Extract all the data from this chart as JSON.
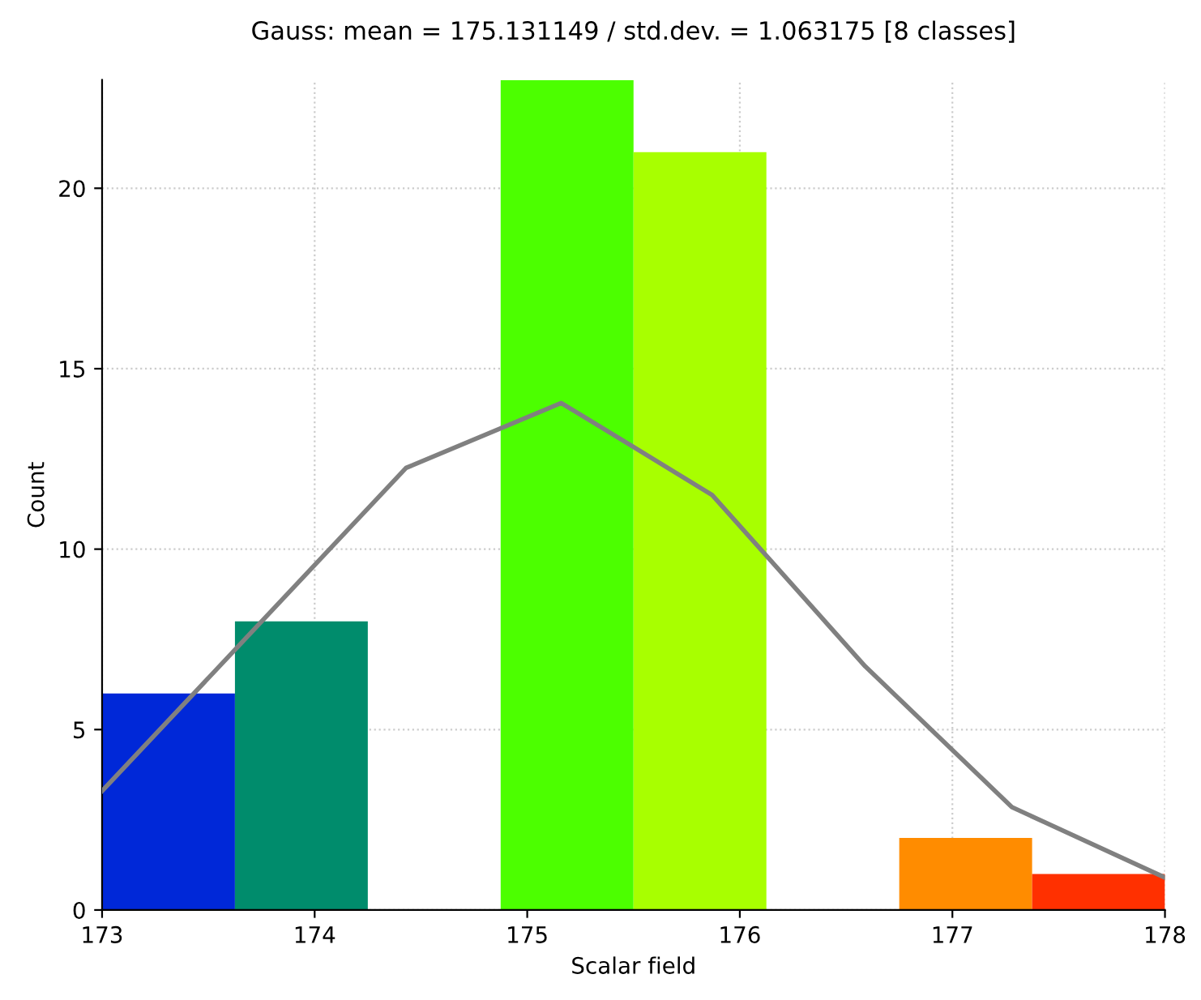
{
  "chart_data": {
    "type": "histogram",
    "title": "Gauss: mean = 175.131149 / std.dev. = 1.063175 [8 classes]",
    "xlabel": "Scalar field",
    "ylabel": "Count",
    "bins": [
      173,
      173.625,
      174.25,
      174.875,
      175.5,
      176.125,
      176.75,
      177.375,
      178
    ],
    "series": [
      {
        "values": [
          6,
          8,
          0,
          23,
          21,
          0,
          2,
          1
        ],
        "colors": [
          "#0028d8",
          "#008c6c",
          "#00c040",
          "#4cff00",
          "#a8ff00",
          "#ffd000",
          "#ff8c00",
          "#ff3000"
        ]
      },
      {
        "type": "line",
        "x": [
          173,
          174.43,
          175.16,
          175.87,
          176.59,
          177.28,
          178
        ],
        "values": [
          3.3,
          12.25,
          14.05,
          11.5,
          6.75,
          2.85,
          0.9
        ],
        "color": "#808080"
      }
    ],
    "xlim": [
      173,
      178
    ],
    "xticks": [
      173,
      174,
      175,
      176,
      177,
      178
    ],
    "ylim": [
      0,
      23
    ],
    "yticks": [
      0,
      5,
      10,
      15,
      20
    ],
    "grid": true
  }
}
